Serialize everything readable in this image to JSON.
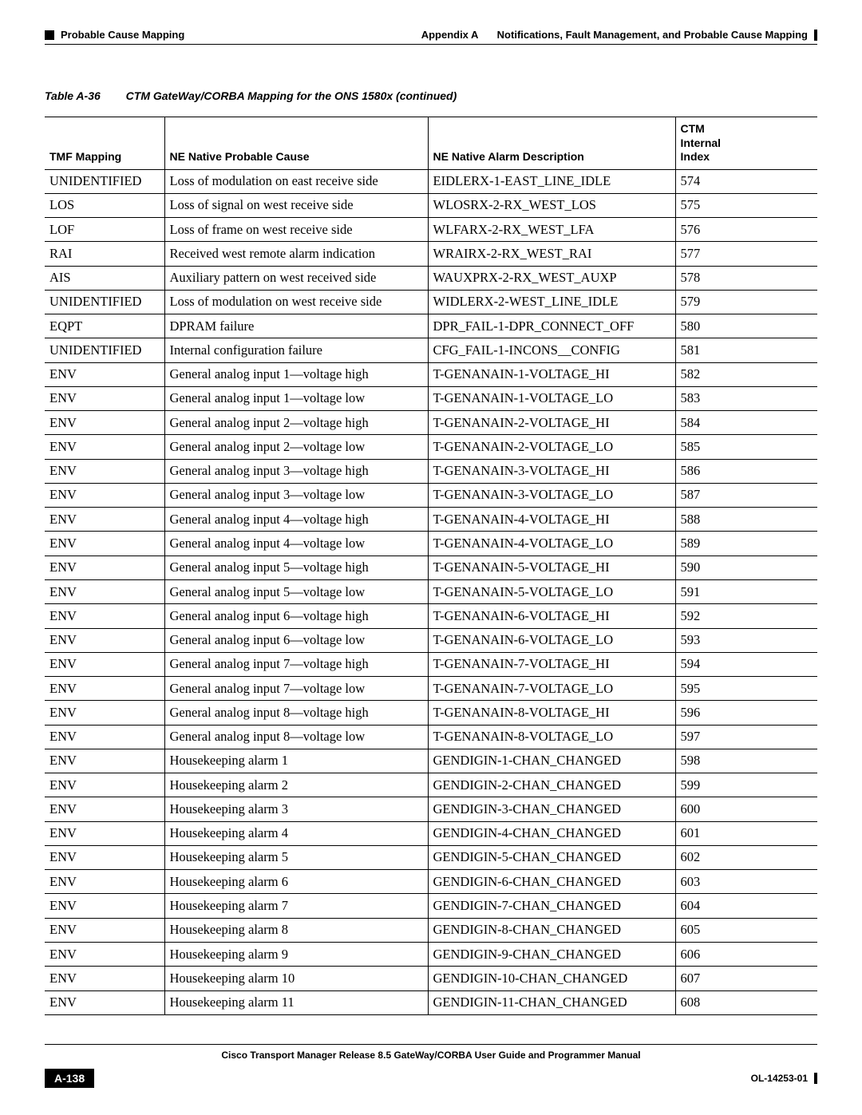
{
  "header": {
    "appendix": "Appendix A",
    "appendix_title": "Notifications, Fault Management, and Probable Cause Mapping",
    "section": "Probable Cause Mapping"
  },
  "table_title": {
    "number": "Table A-36",
    "text": "CTM GateWay/CORBA Mapping for the ONS 1580x (continued)"
  },
  "columns": {
    "tmf": "TMF Mapping",
    "cause": "NE Native Probable Cause",
    "alarm": "NE Native Alarm Description",
    "idx_line1": "CTM",
    "idx_line2": "Internal",
    "idx_line3": "Index"
  },
  "rows": [
    {
      "tmf": "UNIDENTIFIED",
      "cause": "Loss of modulation on east receive side",
      "alarm": "EIDLERX-1-EAST_LINE_IDLE",
      "idx": "574"
    },
    {
      "tmf": "LOS",
      "cause": "Loss of signal on west receive side",
      "alarm": "WLOSRX-2-RX_WEST_LOS",
      "idx": "575"
    },
    {
      "tmf": "LOF",
      "cause": "Loss of frame on west receive side",
      "alarm": "WLFARX-2-RX_WEST_LFA",
      "idx": "576"
    },
    {
      "tmf": "RAI",
      "cause": "Received west remote alarm indication",
      "alarm": "WRAIRX-2-RX_WEST_RAI",
      "idx": "577"
    },
    {
      "tmf": "AIS",
      "cause": "Auxiliary pattern on west received side",
      "alarm": "WAUXPRX-2-RX_WEST_AUXP",
      "idx": "578"
    },
    {
      "tmf": "UNIDENTIFIED",
      "cause": "Loss of modulation on west receive side",
      "alarm": "WIDLERX-2-WEST_LINE_IDLE",
      "idx": "579"
    },
    {
      "tmf": "EQPT",
      "cause": "DPRAM failure",
      "alarm": "DPR_FAIL-1-DPR_CONNECT_OFF",
      "idx": "580"
    },
    {
      "tmf": "UNIDENTIFIED",
      "cause": "Internal configuration failure",
      "alarm": "CFG_FAIL-1-INCONS__CONFIG",
      "idx": "581"
    },
    {
      "tmf": "ENV",
      "cause": "General analog input 1—voltage high",
      "alarm": "T-GENANAIN-1-VOLTAGE_HI",
      "idx": "582"
    },
    {
      "tmf": "ENV",
      "cause": "General analog input 1—voltage low",
      "alarm": "T-GENANAIN-1-VOLTAGE_LO",
      "idx": "583"
    },
    {
      "tmf": "ENV",
      "cause": "General analog input 2—voltage high",
      "alarm": "T-GENANAIN-2-VOLTAGE_HI",
      "idx": "584"
    },
    {
      "tmf": "ENV",
      "cause": "General analog input 2—voltage low",
      "alarm": "T-GENANAIN-2-VOLTAGE_LO",
      "idx": "585"
    },
    {
      "tmf": "ENV",
      "cause": "General analog input 3—voltage high",
      "alarm": "T-GENANAIN-3-VOLTAGE_HI",
      "idx": "586"
    },
    {
      "tmf": "ENV",
      "cause": "General analog input 3—voltage low",
      "alarm": "T-GENANAIN-3-VOLTAGE_LO",
      "idx": "587"
    },
    {
      "tmf": "ENV",
      "cause": "General analog input 4—voltage high",
      "alarm": "T-GENANAIN-4-VOLTAGE_HI",
      "idx": "588"
    },
    {
      "tmf": "ENV",
      "cause": "General analog input 4—voltage low",
      "alarm": "T-GENANAIN-4-VOLTAGE_LO",
      "idx": "589"
    },
    {
      "tmf": "ENV",
      "cause": "General analog input 5—voltage high",
      "alarm": "T-GENANAIN-5-VOLTAGE_HI",
      "idx": "590"
    },
    {
      "tmf": "ENV",
      "cause": "General analog input 5—voltage low",
      "alarm": "T-GENANAIN-5-VOLTAGE_LO",
      "idx": "591"
    },
    {
      "tmf": "ENV",
      "cause": "General analog input 6—voltage high",
      "alarm": "T-GENANAIN-6-VOLTAGE_HI",
      "idx": "592"
    },
    {
      "tmf": "ENV",
      "cause": "General analog input 6—voltage low",
      "alarm": "T-GENANAIN-6-VOLTAGE_LO",
      "idx": "593"
    },
    {
      "tmf": "ENV",
      "cause": "General analog input 7—voltage high",
      "alarm": "T-GENANAIN-7-VOLTAGE_HI",
      "idx": "594"
    },
    {
      "tmf": "ENV",
      "cause": "General analog input 7—voltage low",
      "alarm": "T-GENANAIN-7-VOLTAGE_LO",
      "idx": "595"
    },
    {
      "tmf": "ENV",
      "cause": "General analog input 8—voltage high",
      "alarm": "T-GENANAIN-8-VOLTAGE_HI",
      "idx": "596"
    },
    {
      "tmf": "ENV",
      "cause": "General analog input 8—voltage low",
      "alarm": "T-GENANAIN-8-VOLTAGE_LO",
      "idx": "597"
    },
    {
      "tmf": "ENV",
      "cause": "Housekeeping alarm 1",
      "alarm": "GENDIGIN-1-CHAN_CHANGED",
      "idx": "598"
    },
    {
      "tmf": "ENV",
      "cause": "Housekeeping alarm 2",
      "alarm": "GENDIGIN-2-CHAN_CHANGED",
      "idx": "599"
    },
    {
      "tmf": "ENV",
      "cause": "Housekeeping alarm 3",
      "alarm": "GENDIGIN-3-CHAN_CHANGED",
      "idx": "600"
    },
    {
      "tmf": "ENV",
      "cause": "Housekeeping alarm 4",
      "alarm": "GENDIGIN-4-CHAN_CHANGED",
      "idx": "601"
    },
    {
      "tmf": "ENV",
      "cause": "Housekeeping alarm 5",
      "alarm": "GENDIGIN-5-CHAN_CHANGED",
      "idx": "602"
    },
    {
      "tmf": "ENV",
      "cause": "Housekeeping alarm 6",
      "alarm": "GENDIGIN-6-CHAN_CHANGED",
      "idx": "603"
    },
    {
      "tmf": "ENV",
      "cause": "Housekeeping alarm 7",
      "alarm": "GENDIGIN-7-CHAN_CHANGED",
      "idx": "604"
    },
    {
      "tmf": "ENV",
      "cause": "Housekeeping alarm 8",
      "alarm": "GENDIGIN-8-CHAN_CHANGED",
      "idx": "605"
    },
    {
      "tmf": "ENV",
      "cause": "Housekeeping alarm 9",
      "alarm": "GENDIGIN-9-CHAN_CHANGED",
      "idx": "606"
    },
    {
      "tmf": "ENV",
      "cause": "Housekeeping alarm 10",
      "alarm": "GENDIGIN-10-CHAN_CHANGED",
      "idx": "607"
    },
    {
      "tmf": "ENV",
      "cause": "Housekeeping alarm 11",
      "alarm": "GENDIGIN-11-CHAN_CHANGED",
      "idx": "608"
    }
  ],
  "footer": {
    "manual": "Cisco Transport Manager Release 8.5 GateWay/CORBA User Guide and Programmer Manual",
    "page": "A-138",
    "doc_id": "OL-14253-01"
  }
}
